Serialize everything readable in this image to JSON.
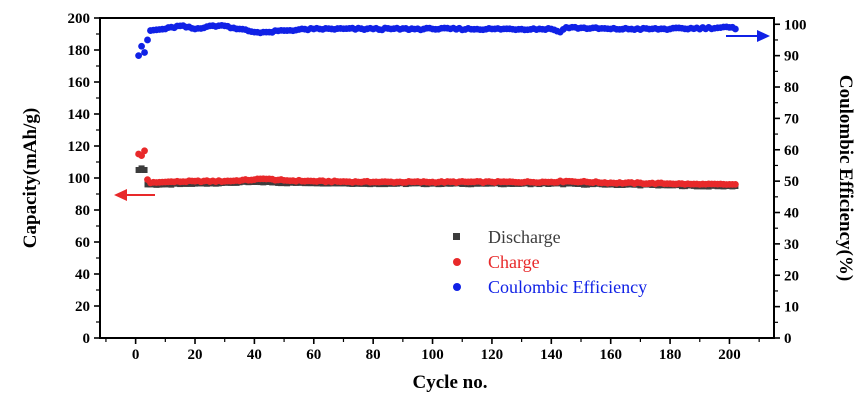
{
  "chart_data": {
    "type": "scatter",
    "xlabel": "Cycle no.",
    "ylabel_left": "Capacity(mAh/g)",
    "ylabel_right": "Coulombic Efficiency(%)",
    "xlim": [
      -12,
      215
    ],
    "ylim_left": [
      0,
      200
    ],
    "ylim_right": [
      0,
      102
    ],
    "x_ticks": [
      0,
      20,
      40,
      60,
      80,
      100,
      120,
      140,
      160,
      180,
      200
    ],
    "y_left_ticks": [
      0,
      20,
      40,
      60,
      80,
      100,
      120,
      140,
      160,
      180,
      200
    ],
    "y_right_ticks": [
      0,
      10,
      20,
      30,
      40,
      50,
      60,
      70,
      80,
      90,
      100
    ],
    "x_tick_labels": [
      "0",
      "20",
      "40",
      "60",
      "80",
      "100",
      "120",
      "140",
      "160",
      "180",
      "200"
    ],
    "y_left_tick_labels": [
      "0",
      "20",
      "40",
      "60",
      "80",
      "100",
      "120",
      "140",
      "160",
      "180",
      "200"
    ],
    "y_right_tick_labels": [
      "0",
      "10",
      "20",
      "30",
      "40",
      "50",
      "60",
      "70",
      "80",
      "90",
      "100"
    ],
    "legend_position": "lower-center",
    "series": [
      {
        "name": "Discharge",
        "axis": "left",
        "marker": "square",
        "color": "#3c3c3c",
        "points": [
          [
            1,
            105
          ],
          [
            2,
            106
          ],
          [
            3,
            105
          ],
          [
            4,
            96
          ],
          [
            5,
            96
          ],
          [
            10,
            96
          ],
          [
            20,
            96.5
          ],
          [
            30,
            97
          ],
          [
            40,
            97.5
          ],
          [
            45,
            97.5
          ],
          [
            50,
            97
          ],
          [
            60,
            97
          ],
          [
            80,
            96.5
          ],
          [
            100,
            96.5
          ],
          [
            120,
            96.5
          ],
          [
            140,
            96.5
          ],
          [
            160,
            96
          ],
          [
            180,
            95.5
          ],
          [
            190,
            95
          ],
          [
            200,
            95
          ],
          [
            202,
            95
          ]
        ]
      },
      {
        "name": "Charge",
        "axis": "left",
        "marker": "circle",
        "color": "#e8292a",
        "points": [
          [
            1,
            115
          ],
          [
            2,
            114
          ],
          [
            3,
            117
          ],
          [
            4,
            99
          ],
          [
            5,
            97
          ],
          [
            10,
            97.5
          ],
          [
            20,
            98
          ],
          [
            30,
            98
          ],
          [
            40,
            99
          ],
          [
            43,
            99.5
          ],
          [
            50,
            98.5
          ],
          [
            60,
            98
          ],
          [
            80,
            97.5
          ],
          [
            100,
            97.5
          ],
          [
            120,
            97.5
          ],
          [
            140,
            97.5
          ],
          [
            145,
            98
          ],
          [
            160,
            97
          ],
          [
            180,
            96.5
          ],
          [
            190,
            96
          ],
          [
            200,
            96
          ],
          [
            202,
            96
          ]
        ]
      },
      {
        "name": "Coulombic Efficiency",
        "axis": "right",
        "marker": "circle",
        "color": "#1021e6",
        "points": [
          [
            1,
            90
          ],
          [
            2,
            93
          ],
          [
            3,
            91
          ],
          [
            4,
            95
          ],
          [
            5,
            98
          ],
          [
            10,
            98.5
          ],
          [
            15,
            99.5
          ],
          [
            20,
            98.5
          ],
          [
            25,
            99.5
          ],
          [
            30,
            99.5
          ],
          [
            35,
            98.5
          ],
          [
            40,
            97.5
          ],
          [
            45,
            97.5
          ],
          [
            50,
            98
          ],
          [
            60,
            98.5
          ],
          [
            80,
            98.5
          ],
          [
            100,
            98.5
          ],
          [
            120,
            98.5
          ],
          [
            140,
            98.5
          ],
          [
            143,
            97.5
          ],
          [
            145,
            99
          ],
          [
            160,
            98.5
          ],
          [
            180,
            98.5
          ],
          [
            200,
            99
          ],
          [
            202,
            98.5
          ]
        ]
      }
    ]
  }
}
